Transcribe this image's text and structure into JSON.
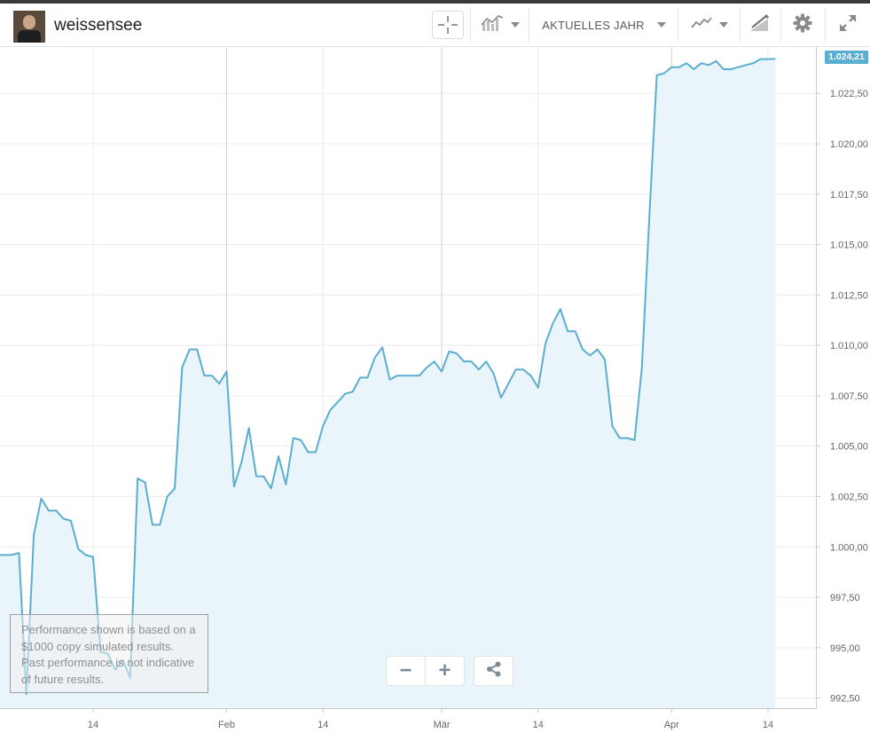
{
  "header": {
    "username": "weissensee",
    "range_label": "AKTUELLES JAHR",
    "icons": [
      "crosshair-icon",
      "chart-compare-icon",
      "line-chart-type-icon",
      "drawing-tools-icon",
      "gear-icon",
      "expand-icon"
    ]
  },
  "colors": {
    "line": "#5aaed0",
    "fill": "#eaf4fb",
    "grid": "#ececec"
  },
  "last_value_label": "1.024,21",
  "disclaimer": "Performance shown is based on a $1000 copy simulated results. Past performance is not indicative of future results.",
  "zoom": {
    "out_label": "−",
    "in_label": "+"
  },
  "chart_data": {
    "type": "area",
    "ylim": [
      992.0,
      1024.8
    ],
    "y_ticks": [
      992.5,
      995.0,
      997.5,
      1000.0,
      1002.5,
      1005.0,
      1007.5,
      1010.0,
      1012.5,
      1015.0,
      1017.5,
      1020.0,
      1022.5
    ],
    "y_tick_labels": [
      "992,50",
      "995,00",
      "997,50",
      "1.000,00",
      "1.002,50",
      "1.005,00",
      "1.007,50",
      "1.010,00",
      "1.012,50",
      "1.015,00",
      "1.017,50",
      "1.020,00",
      "1.022,50"
    ],
    "x_ticks": [
      {
        "label": "14",
        "date": "2016-01-14"
      },
      {
        "label": "Feb",
        "date": "2016-02-01"
      },
      {
        "label": "14",
        "date": "2016-02-14"
      },
      {
        "label": "Mär",
        "date": "2016-03-01"
      },
      {
        "label": "14",
        "date": "2016-03-14"
      },
      {
        "label": "Apr",
        "date": "2016-04-01"
      },
      {
        "label": "14",
        "date": "2016-04-14"
      }
    ],
    "xlim": [
      "2016-01-01",
      "2016-04-20"
    ],
    "grid": true,
    "series": [
      {
        "dates": [
          "2016-01-01",
          "2016-01-02",
          "2016-01-03",
          "2016-01-04",
          "2016-01-05",
          "2016-01-06",
          "2016-01-07",
          "2016-01-08",
          "2016-01-09",
          "2016-01-10",
          "2016-01-11",
          "2016-01-12",
          "2016-01-13",
          "2016-01-14",
          "2016-01-15",
          "2016-01-16",
          "2016-01-17",
          "2016-01-18",
          "2016-01-19",
          "2016-01-20",
          "2016-01-21",
          "2016-01-22",
          "2016-01-23",
          "2016-01-24",
          "2016-01-25",
          "2016-01-26",
          "2016-01-27",
          "2016-01-28",
          "2016-01-29",
          "2016-01-30",
          "2016-01-31",
          "2016-02-01",
          "2016-02-02",
          "2016-02-03",
          "2016-02-04",
          "2016-02-05",
          "2016-02-06",
          "2016-02-07",
          "2016-02-08",
          "2016-02-09",
          "2016-02-10",
          "2016-02-11",
          "2016-02-12",
          "2016-02-13",
          "2016-02-14",
          "2016-02-15",
          "2016-02-16",
          "2016-02-17",
          "2016-02-18",
          "2016-02-19",
          "2016-02-20",
          "2016-02-21",
          "2016-02-22",
          "2016-02-23",
          "2016-02-24",
          "2016-02-25",
          "2016-02-26",
          "2016-02-27",
          "2016-02-28",
          "2016-02-29",
          "2016-03-01",
          "2016-03-02",
          "2016-03-03",
          "2016-03-04",
          "2016-03-05",
          "2016-03-06",
          "2016-03-07",
          "2016-03-08",
          "2016-03-09",
          "2016-03-10",
          "2016-03-11",
          "2016-03-12",
          "2016-03-13",
          "2016-03-14",
          "2016-03-15",
          "2016-03-16",
          "2016-03-17",
          "2016-03-18",
          "2016-03-19",
          "2016-03-20",
          "2016-03-21",
          "2016-03-22",
          "2016-03-23",
          "2016-03-24",
          "2016-03-25",
          "2016-03-26",
          "2016-03-27",
          "2016-03-28",
          "2016-03-29",
          "2016-03-30",
          "2016-03-31",
          "2016-04-01",
          "2016-04-02",
          "2016-04-03",
          "2016-04-04",
          "2016-04-05",
          "2016-04-06",
          "2016-04-07",
          "2016-04-08",
          "2016-04-09",
          "2016-04-10",
          "2016-04-11",
          "2016-04-12",
          "2016-04-13",
          "2016-04-14",
          "2016-04-15"
        ],
        "values": [
          999.6,
          999.6,
          999.6,
          999.7,
          992.7,
          1000.6,
          1002.4,
          1001.8,
          1001.8,
          1001.4,
          1001.3,
          999.9,
          999.6,
          999.5,
          994.8,
          994.7,
          993.9,
          994.4,
          993.5,
          1003.4,
          1003.2,
          1001.1,
          1001.1,
          1002.5,
          1002.9,
          1008.9,
          1009.8,
          1009.8,
          1008.5,
          1008.5,
          1008.1,
          1008.7,
          1003.0,
          1004.2,
          1005.9,
          1003.5,
          1003.5,
          1002.9,
          1004.5,
          1003.1,
          1005.4,
          1005.3,
          1004.7,
          1004.7,
          1006.0,
          1006.8,
          1007.2,
          1007.6,
          1007.7,
          1008.4,
          1008.4,
          1009.4,
          1009.9,
          1008.3,
          1008.5,
          1008.5,
          1008.5,
          1008.5,
          1008.9,
          1009.2,
          1008.7,
          1009.7,
          1009.6,
          1009.2,
          1009.2,
          1008.8,
          1009.2,
          1008.6,
          1007.4,
          1008.1,
          1008.8,
          1008.8,
          1008.5,
          1007.9,
          1010.1,
          1011.1,
          1011.8,
          1010.7,
          1010.7,
          1009.8,
          1009.5,
          1009.8,
          1009.3,
          1006.0,
          1005.4,
          1005.4,
          1005.3,
          1008.9,
          1016.4,
          1023.4,
          1023.5,
          1023.8,
          1023.8,
          1024.0,
          1023.7,
          1024.0,
          1023.9,
          1024.1,
          1023.7,
          1023.7,
          1023.8,
          1023.9,
          1024.0,
          1024.2,
          1024.2,
          1024.21
        ]
      }
    ]
  }
}
